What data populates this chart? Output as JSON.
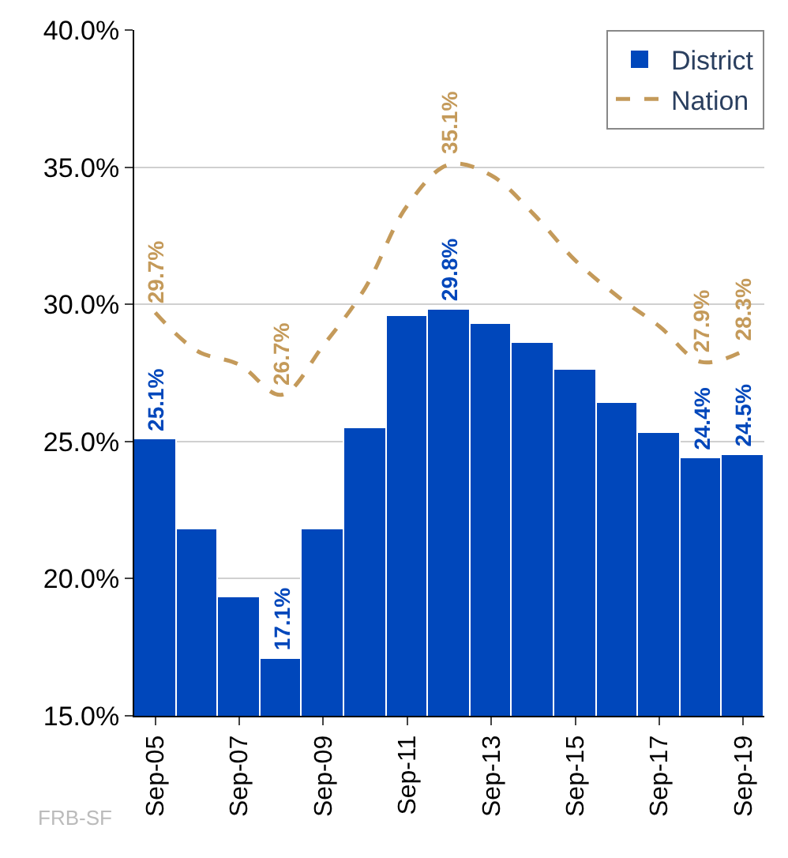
{
  "chart_data": {
    "type": "bar",
    "categories": [
      "Sep-05",
      null,
      "Sep-07",
      null,
      "Sep-09",
      null,
      "Sep-11",
      null,
      "Sep-13",
      null,
      "Sep-15",
      null,
      "Sep-17",
      null,
      "Sep-19"
    ],
    "series": [
      {
        "name": "District",
        "color": "#0047bb",
        "values": [
          25.1,
          21.8,
          19.3,
          17.1,
          21.8,
          25.5,
          29.6,
          29.8,
          29.3,
          28.6,
          27.6,
          26.4,
          25.3,
          24.4,
          24.5
        ],
        "value_labels": [
          "25.1%",
          null,
          null,
          "17.1%",
          null,
          null,
          null,
          "29.8%",
          null,
          null,
          null,
          null,
          null,
          "24.4%",
          "24.5%"
        ]
      },
      {
        "name": "Nation",
        "type": "line",
        "color": "#c49a5a",
        "line_style": "dashed",
        "values": [
          29.7,
          28.3,
          27.8,
          26.7,
          28.5,
          30.6,
          33.6,
          35.1,
          34.7,
          33.3,
          31.6,
          30.3,
          29.2,
          27.9,
          28.3
        ],
        "value_labels": [
          "29.7%",
          null,
          null,
          "26.7%",
          null,
          null,
          null,
          "35.1%",
          null,
          null,
          null,
          null,
          null,
          "27.9%",
          "28.3%"
        ]
      }
    ],
    "ylim": [
      15,
      40
    ],
    "yticks": [
      {
        "value": 15,
        "label": "15.0%"
      },
      {
        "value": 20,
        "label": "20.0%"
      },
      {
        "value": 25,
        "label": "25.0%"
      },
      {
        "value": 30,
        "label": "30.0%"
      },
      {
        "value": 35,
        "label": "35.0%"
      },
      {
        "value": 40,
        "label": "40.0%"
      }
    ],
    "grid": "y",
    "legend": "top right",
    "annotations": [
      "FRB-SF"
    ]
  }
}
